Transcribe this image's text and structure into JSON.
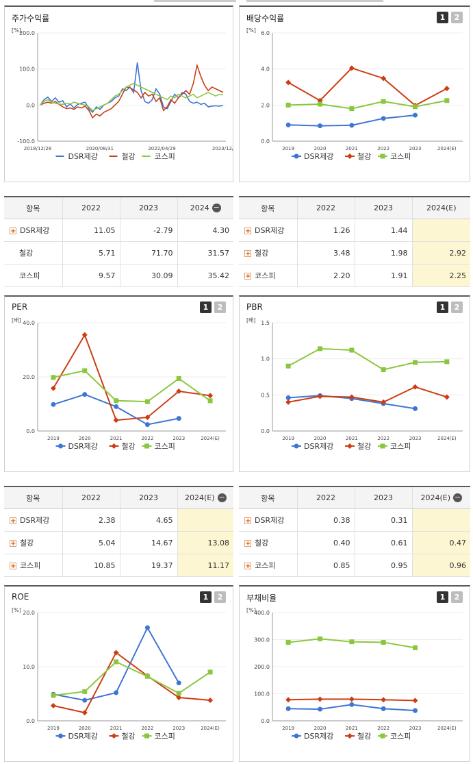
{
  "colors": {
    "dsr": "#3f75d3",
    "steel": "#cc3d14",
    "kospi": "#8cc63f"
  },
  "chart_data": [
    {
      "id": "c1",
      "type": "line",
      "title": "주가수익률",
      "unit": "[%]",
      "ylim": [
        -100,
        200
      ],
      "yticks": [
        "200.0",
        "100.0",
        "0.0",
        "-100.0"
      ],
      "x_labels": [
        "2018/12/28",
        "2020/08/31",
        "2022/04/29",
        "2023/12/28"
      ],
      "series": [
        {
          "name": "DSR제강",
          "values": [
            0,
            15,
            22,
            10,
            20,
            8,
            12,
            -5,
            3,
            -8,
            2,
            5,
            8,
            -10,
            -20,
            -5,
            -12,
            0,
            5,
            10,
            20,
            25,
            45,
            40,
            50,
            35,
            118,
            40,
            10,
            5,
            15,
            45,
            30,
            -5,
            -10,
            10,
            30,
            20,
            35,
            30,
            10,
            5,
            8,
            2,
            5,
            -5,
            -3,
            -2,
            -3,
            -1
          ]
        },
        {
          "name": "철강",
          "values": [
            0,
            5,
            8,
            5,
            10,
            2,
            -5,
            -10,
            -8,
            -12,
            -5,
            -8,
            -3,
            -15,
            -35,
            -25,
            -30,
            -20,
            -15,
            -10,
            0,
            10,
            30,
            50,
            48,
            42,
            35,
            20,
            35,
            25,
            30,
            10,
            20,
            -15,
            -5,
            15,
            5,
            20,
            30,
            40,
            30,
            60,
            110,
            80,
            55,
            40,
            50,
            45,
            40,
            35
          ]
        },
        {
          "name": "코스피",
          "values": [
            0,
            10,
            15,
            8,
            5,
            3,
            2,
            5,
            3,
            8,
            5,
            2,
            0,
            -5,
            -15,
            -10,
            -5,
            0,
            5,
            15,
            25,
            30,
            40,
            50,
            55,
            60,
            55,
            50,
            45,
            40,
            35,
            30,
            25,
            20,
            15,
            25,
            20,
            30,
            25,
            20,
            25,
            30,
            20,
            25,
            30,
            35,
            30,
            25,
            30,
            28
          ]
        }
      ]
    },
    {
      "id": "c2",
      "type": "line",
      "title": "배당수익률",
      "unit": "[%]",
      "ylim": [
        0,
        6
      ],
      "yticks": [
        "6.0",
        "4.0",
        "2.0",
        "0.0"
      ],
      "categories": [
        "2019",
        "2020",
        "2021",
        "2022",
        "2023",
        "2024(E)"
      ],
      "series": [
        {
          "name": "DSR제강",
          "values": [
            0.9,
            0.85,
            0.88,
            1.26,
            1.44,
            null
          ]
        },
        {
          "name": "철강",
          "values": [
            3.25,
            2.25,
            4.05,
            3.48,
            1.98,
            2.92
          ]
        },
        {
          "name": "코스피",
          "values": [
            2.0,
            2.05,
            1.8,
            2.2,
            1.91,
            2.25
          ]
        }
      ]
    },
    {
      "id": "c3",
      "type": "line",
      "title": "PER",
      "unit": "[배]",
      "ylim": [
        0,
        40
      ],
      "yticks": [
        "40.0",
        "20.0",
        "0.0"
      ],
      "categories": [
        "2019",
        "2020",
        "2021",
        "2022",
        "2023",
        "2024(E)"
      ],
      "series": [
        {
          "name": "DSR제강",
          "values": [
            9.8,
            13.5,
            9.0,
            2.38,
            4.65,
            null
          ]
        },
        {
          "name": "철강",
          "values": [
            15.8,
            35.5,
            4.0,
            5.04,
            14.67,
            13.08
          ]
        },
        {
          "name": "코스피",
          "values": [
            19.8,
            22.3,
            11.2,
            10.85,
            19.37,
            11.17
          ]
        }
      ]
    },
    {
      "id": "c4",
      "type": "line",
      "title": "PBR",
      "unit": "[배]",
      "ylim": [
        0,
        1.5
      ],
      "yticks": [
        "1.5",
        "1.0",
        "0.5",
        "0.0"
      ],
      "categories": [
        "2019",
        "2020",
        "2021",
        "2022",
        "2023",
        "2024(E)"
      ],
      "series": [
        {
          "name": "DSR제강",
          "values": [
            0.46,
            0.49,
            0.45,
            0.38,
            0.31,
            null
          ]
        },
        {
          "name": "철강",
          "values": [
            0.4,
            0.48,
            0.47,
            0.4,
            0.61,
            0.47
          ]
        },
        {
          "name": "코스피",
          "values": [
            0.9,
            1.14,
            1.12,
            0.85,
            0.95,
            0.96
          ]
        }
      ]
    },
    {
      "id": "c5",
      "type": "line",
      "title": "ROE",
      "unit": "[%]",
      "ylim": [
        0,
        20
      ],
      "yticks": [
        "20.0",
        "10.0",
        "0.0"
      ],
      "categories": [
        "2019",
        "2020",
        "2021",
        "2022",
        "2023",
        "2024(E)"
      ],
      "series": [
        {
          "name": "DSR제강",
          "values": [
            4.9,
            3.8,
            5.2,
            17.2,
            7.0,
            null
          ]
        },
        {
          "name": "철강",
          "values": [
            2.8,
            1.5,
            12.6,
            8.3,
            4.3,
            3.8
          ]
        },
        {
          "name": "코스피",
          "values": [
            4.7,
            5.4,
            10.9,
            8.2,
            5.1,
            9.0
          ]
        }
      ]
    },
    {
      "id": "c6",
      "type": "line",
      "title": "부채비율",
      "unit": "[%]",
      "ylim": [
        0,
        400
      ],
      "yticks": [
        "400.0",
        "300.0",
        "200.0",
        "100.0",
        "0.0"
      ],
      "categories": [
        "2019",
        "2020",
        "2021",
        "2022",
        "2023",
        "2024(E)"
      ],
      "series": [
        {
          "name": "DSR제강",
          "values": [
            45,
            43,
            60,
            45,
            38,
            null
          ]
        },
        {
          "name": "철강",
          "values": [
            78,
            80,
            80,
            78,
            75,
            null
          ]
        },
        {
          "name": "코스피",
          "values": [
            290,
            303,
            292,
            290,
            270,
            null
          ]
        }
      ]
    }
  ],
  "panels": {
    "c1": {
      "title": "주가수익률"
    },
    "c2": {
      "title": "배당수익률",
      "btn1": "1",
      "btn2": "2"
    },
    "c3": {
      "title": "PER",
      "btn1": "1",
      "btn2": "2"
    },
    "c4": {
      "title": "PBR",
      "btn1": "1",
      "btn2": "2"
    },
    "c5": {
      "title": "ROE",
      "btn1": "1",
      "btn2": "2"
    },
    "c6": {
      "title": "부채비율",
      "btn1": "1",
      "btn2": "2"
    }
  },
  "tables": {
    "t1": {
      "headers": [
        "항목",
        "2022",
        "2023",
        "2024"
      ],
      "minus": "−",
      "rows": [
        {
          "name": "DSR제강",
          "plus": true,
          "vals": [
            "11.05",
            "-2.79",
            "4.30"
          ],
          "hl": false
        },
        {
          "name": "철강",
          "plus": false,
          "vals": [
            "5.71",
            "71.70",
            "31.57"
          ],
          "hl": false
        },
        {
          "name": "코스피",
          "plus": false,
          "vals": [
            "9.57",
            "30.09",
            "35.42"
          ],
          "hl": false
        }
      ]
    },
    "t2": {
      "headers": [
        "항목",
        "2022",
        "2023",
        "2024(E)"
      ],
      "minus": "",
      "rows": [
        {
          "name": "DSR제강",
          "plus": true,
          "vals": [
            "1.26",
            "1.44",
            ""
          ],
          "hl": true
        },
        {
          "name": "철강",
          "plus": true,
          "vals": [
            "3.48",
            "1.98",
            "2.92"
          ],
          "hl": true
        },
        {
          "name": "코스피",
          "plus": true,
          "vals": [
            "2.20",
            "1.91",
            "2.25"
          ],
          "hl": true
        }
      ]
    },
    "t3": {
      "headers": [
        "항목",
        "2022",
        "2023",
        "2024(E)"
      ],
      "minus": "−",
      "rows": [
        {
          "name": "DSR제강",
          "plus": true,
          "vals": [
            "2.38",
            "4.65",
            ""
          ],
          "hl": true
        },
        {
          "name": "철강",
          "plus": true,
          "vals": [
            "5.04",
            "14.67",
            "13.08"
          ],
          "hl": true
        },
        {
          "name": "코스피",
          "plus": true,
          "vals": [
            "10.85",
            "19.37",
            "11.17"
          ],
          "hl": true
        }
      ]
    },
    "t4": {
      "headers": [
        "항목",
        "2022",
        "2023",
        "2024(E)"
      ],
      "minus": "−",
      "rows": [
        {
          "name": "DSR제강",
          "plus": true,
          "vals": [
            "0.38",
            "0.31",
            ""
          ],
          "hl": true
        },
        {
          "name": "철강",
          "plus": true,
          "vals": [
            "0.40",
            "0.61",
            "0.47"
          ],
          "hl": true
        },
        {
          "name": "코스피",
          "plus": true,
          "vals": [
            "0.85",
            "0.95",
            "0.96"
          ],
          "hl": true
        }
      ]
    }
  }
}
